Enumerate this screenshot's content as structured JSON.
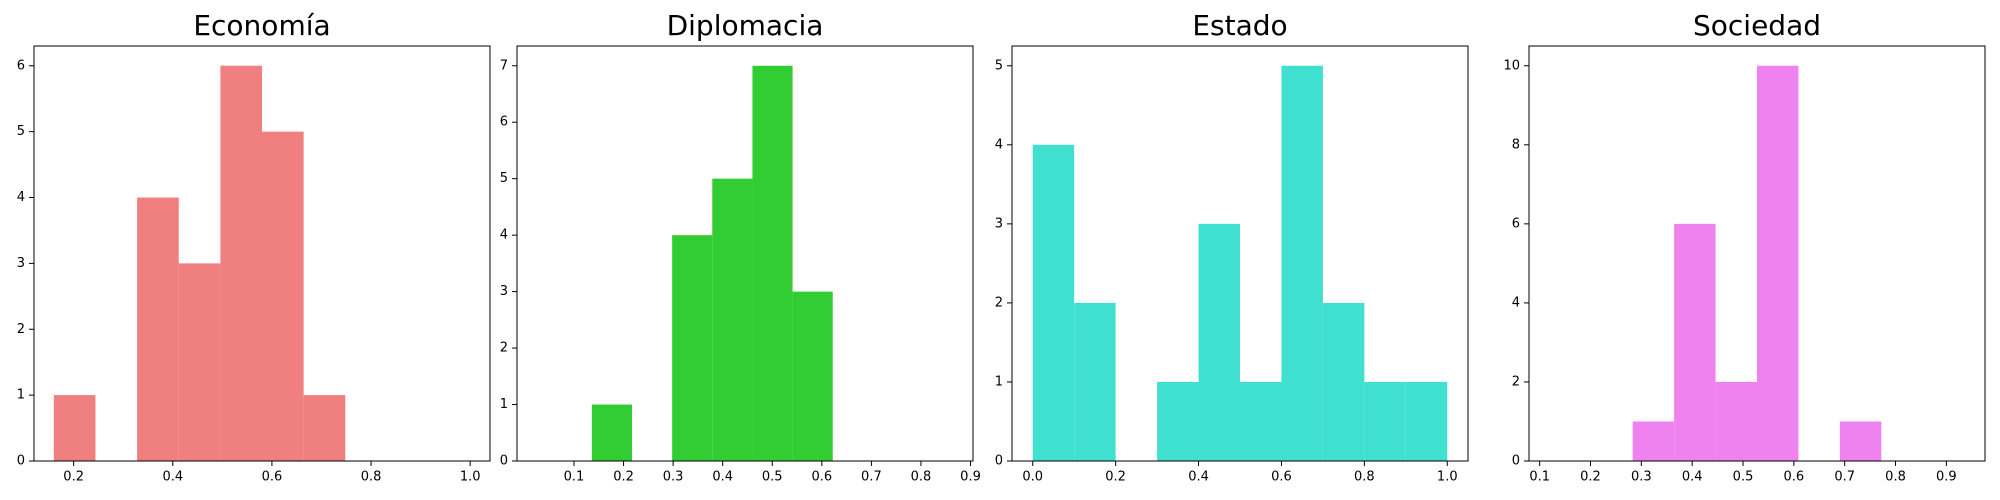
{
  "chart_data": [
    {
      "type": "histogram",
      "title": "Economía",
      "color": "#f08080",
      "bins": [
        0.16,
        0.244,
        0.328,
        0.412,
        0.496,
        0.58,
        0.664,
        0.748,
        0.832,
        0.916,
        1.0
      ],
      "values": [
        1,
        0,
        4,
        3,
        6,
        5,
        1,
        0,
        0,
        0
      ],
      "xlim": [
        0.12,
        1.04
      ],
      "xticks": [
        0.2,
        0.4,
        0.6,
        0.8,
        {
          "value": 1,
          "label": "1.0"
        }
      ],
      "ylim": [
        0,
        6.3
      ],
      "yticks": [
        0,
        1,
        2,
        3,
        4,
        5,
        6
      ]
    },
    {
      "type": "histogram",
      "title": "Diplomacia",
      "color": "#32cd32",
      "bins": [
        0.055,
        0.136,
        0.217,
        0.298,
        0.379,
        0.46,
        0.541,
        0.622,
        0.703,
        0.784,
        0.865
      ],
      "values": [
        0,
        1,
        0,
        4,
        5,
        7,
        3,
        0,
        0,
        0
      ],
      "xlim": [
        -0.015,
        0.905
      ],
      "xticks": [
        0.1,
        0.2,
        0.3,
        0.4,
        0.5,
        0.6,
        0.7,
        0.8,
        0.9
      ],
      "ylim": [
        0,
        7.35
      ],
      "yticks": [
        0,
        1,
        2,
        3,
        4,
        5,
        6,
        7
      ]
    },
    {
      "type": "histogram",
      "title": "Estado",
      "color": "#40e0d0",
      "bins": [
        0,
        0.1,
        0.2,
        0.3,
        0.4,
        0.5,
        0.6,
        0.7,
        0.8,
        0.9,
        1.0
      ],
      "values": [
        4,
        2,
        0,
        1,
        3,
        1,
        5,
        2,
        1,
        1
      ],
      "xlim": [
        -0.05,
        1.05
      ],
      "xticks": [
        {
          "value": 0,
          "label": "0.0"
        },
        0.2,
        0.4,
        0.6,
        0.8,
        {
          "value": 1,
          "label": "1.0"
        }
      ],
      "ylim": [
        0,
        5.25
      ],
      "yticks": [
        0,
        1,
        2,
        3,
        4,
        5
      ]
    },
    {
      "type": "histogram",
      "title": "Sociedad",
      "color": "#ee82ee",
      "bins": [
        0.12,
        0.2015,
        0.283,
        0.3645,
        0.446,
        0.5275,
        0.609,
        0.6905,
        0.772,
        0.8535,
        0.935
      ],
      "values": [
        0,
        0,
        1,
        6,
        2,
        10,
        0,
        1,
        0,
        0
      ],
      "xlim": [
        0.079,
        0.976
      ],
      "xticks": [
        0.1,
        0.2,
        0.3,
        0.4,
        0.5,
        0.6,
        0.7,
        0.8,
        0.9
      ],
      "ylim": [
        0,
        10.5
      ],
      "yticks": [
        0,
        2,
        4,
        6,
        8,
        10
      ]
    }
  ]
}
